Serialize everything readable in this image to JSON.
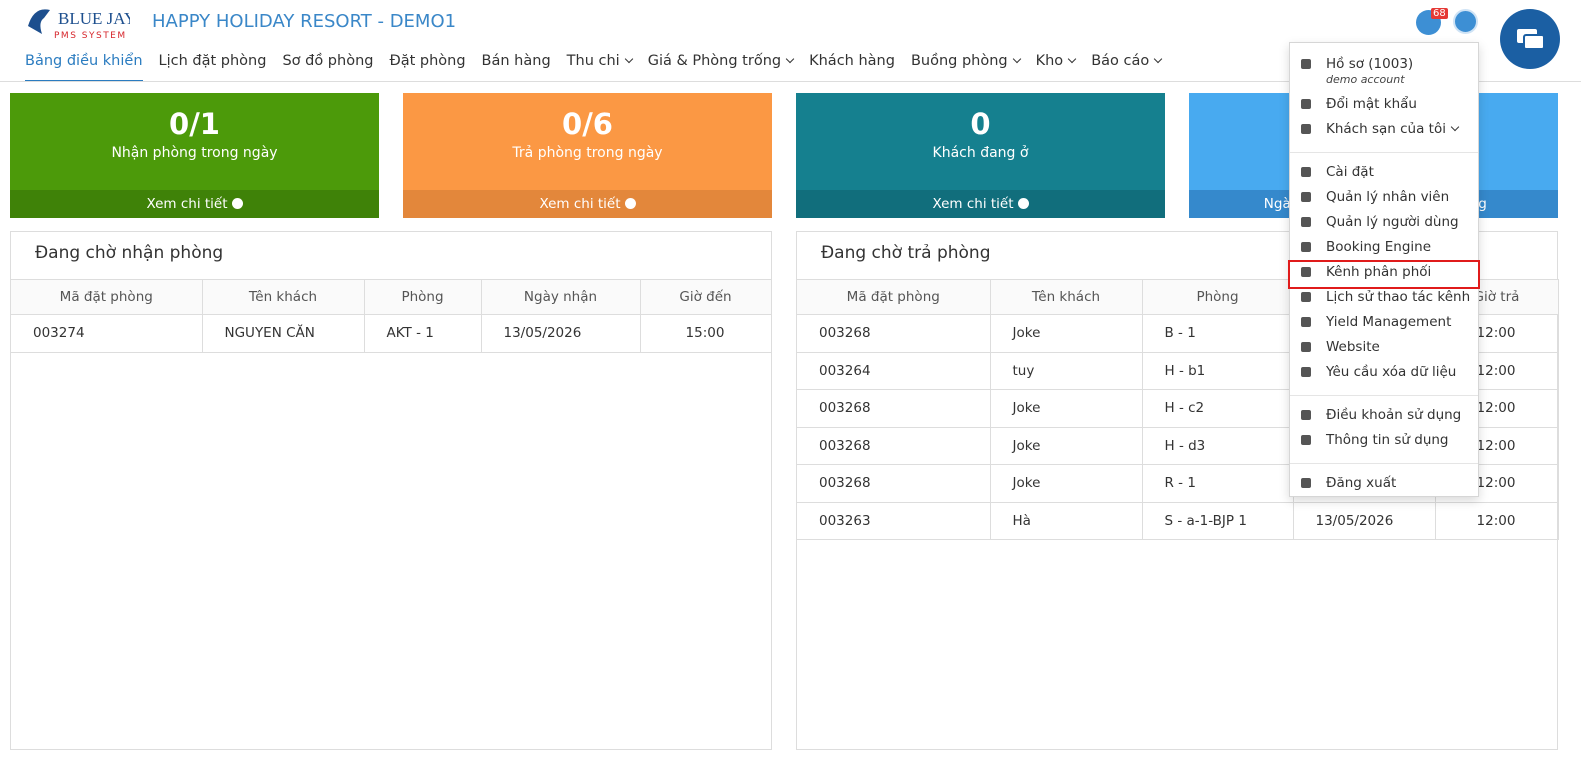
{
  "header": {
    "logo_top": "BLUE JAY",
    "logo_bottom": "PMS SYSTEM",
    "title": "HAPPY HOLIDAY RESORT - DEMO1",
    "notification_count": "68"
  },
  "nav": {
    "active": 0,
    "items": [
      {
        "label": "Bảng điều khiển",
        "dropdown": false
      },
      {
        "label": "Lịch đặt phòng",
        "dropdown": false
      },
      {
        "label": "Sơ đồ phòng",
        "dropdown": false
      },
      {
        "label": "Đặt phòng",
        "dropdown": false
      },
      {
        "label": "Bán hàng",
        "dropdown": false
      },
      {
        "label": "Thu chi",
        "dropdown": true
      },
      {
        "label": "Giá & Phòng trống",
        "dropdown": true
      },
      {
        "label": "Khách hàng",
        "dropdown": false
      },
      {
        "label": "Buồng phòng",
        "dropdown": true
      },
      {
        "label": "Kho",
        "dropdown": true
      },
      {
        "label": "Báo cáo",
        "dropdown": true
      }
    ]
  },
  "cards": [
    {
      "value": "0/1",
      "label": "Nhận phòng trong ngày",
      "footer": [
        "Xem chi tiết"
      ],
      "color": "#4c9a0a",
      "footer_color": "#3f8208"
    },
    {
      "value": "0/6",
      "label": "Trả phòng trong ngày",
      "footer": [
        "Xem chi tiết"
      ],
      "color": "#fb9844",
      "footer_color": "#e3873b"
    },
    {
      "value": "0",
      "label": "Khách đang ở",
      "footer": [
        "Xem chi tiết"
      ],
      "color": "#15808f",
      "footer_color": "#116e7c"
    },
    {
      "value": null,
      "label": null,
      "footer": [
        "Ngày",
        "Tháng"
      ],
      "color": "#48aaf0",
      "footer_color": "#3589cc"
    }
  ],
  "panels": [
    {
      "title": "Đang chờ nhận phòng",
      "columns": [
        "Mã đặt phòng",
        "Tên khách",
        "Phòng",
        "Ngày nhận",
        "Giờ đến"
      ],
      "rows": [
        [
          "003274",
          "NGUYEN CĂN",
          "AKT - 1",
          "13/05/2026",
          "15:00"
        ]
      ]
    },
    {
      "title": "Đang chờ trả phòng",
      "columns": [
        "Mã đặt phòng",
        "Tên khách",
        "Phòng",
        null,
        "Giờ trả"
      ],
      "rows": [
        [
          "003268",
          "Joke",
          "B - 1",
          null,
          "12:00"
        ],
        [
          "003264",
          "tuy",
          "H - b1",
          null,
          "12:00"
        ],
        [
          "003268",
          "Joke",
          "H - c2",
          null,
          "12:00"
        ],
        [
          "003268",
          "Joke",
          "H - d3",
          null,
          "12:00"
        ],
        [
          "003268",
          "Joke",
          "R - 1",
          null,
          "12:00"
        ],
        [
          "003263",
          "Hà",
          "S - a-1-BJP 1",
          "13/05/2026",
          "12:00"
        ]
      ]
    }
  ],
  "user_menu": {
    "groups": [
      [
        {
          "label": "Hồ sơ (1003)",
          "sub": "demo account"
        },
        {
          "label": "Đổi mật khẩu"
        },
        {
          "label": "Khách sạn của tôi",
          "dropdown": true
        }
      ],
      [
        {
          "label": "Cài đặt"
        },
        {
          "label": "Quản lý nhân viên"
        },
        {
          "label": "Quản lý người dùng"
        },
        {
          "label": "Booking Engine"
        },
        {
          "label": "Kênh phân phối",
          "highlighted": true
        },
        {
          "label": "Lịch sử thao tác kênh"
        },
        {
          "label": "Yield Management"
        },
        {
          "label": "Website"
        },
        {
          "label": "Yêu cầu xóa dữ liệu"
        }
      ],
      [
        {
          "label": "Điều khoản sử dụng"
        },
        {
          "label": "Thông tin sử dụng"
        }
      ],
      [
        {
          "label": "Đăng xuất"
        }
      ]
    ]
  }
}
